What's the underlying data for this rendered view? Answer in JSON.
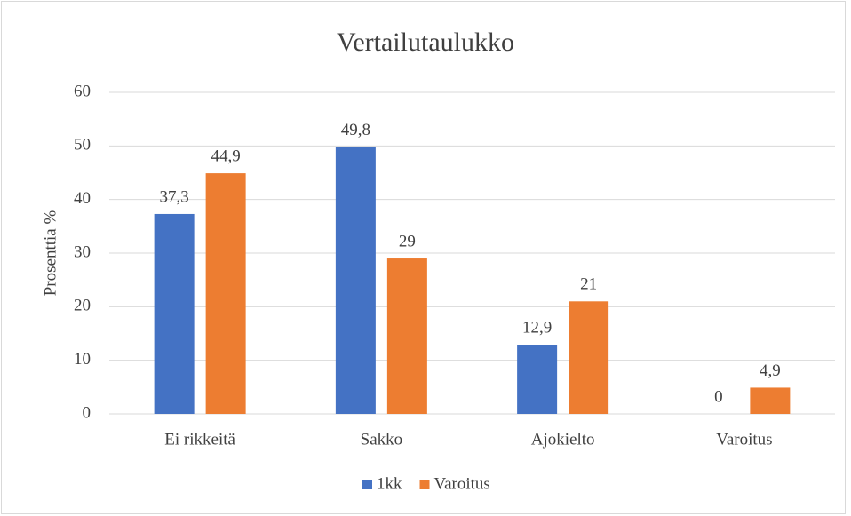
{
  "chart_data": {
    "type": "bar",
    "title": "Vertailutaulukko",
    "y_label": "Prosenttia %",
    "categories": [
      "Ei rikkeitä",
      "Sakko",
      "Ajokielto",
      "Varoitus"
    ],
    "series": [
      {
        "name": "1kk",
        "color": "#4472c4",
        "values": [
          37.3,
          49.8,
          12.9,
          0
        ],
        "value_labels": [
          "37,3",
          "49,8",
          "12,9",
          "0"
        ]
      },
      {
        "name": "Varoitus",
        "color": "#ed7d31",
        "values": [
          44.9,
          29,
          21,
          4.9
        ],
        "value_labels": [
          "44,9",
          "29",
          "21",
          "4,9"
        ]
      }
    ],
    "ylim": [
      0,
      60
    ],
    "yticks": [
      0,
      10,
      20,
      30,
      40,
      50,
      60
    ],
    "grid": true,
    "legend": "bottom"
  }
}
